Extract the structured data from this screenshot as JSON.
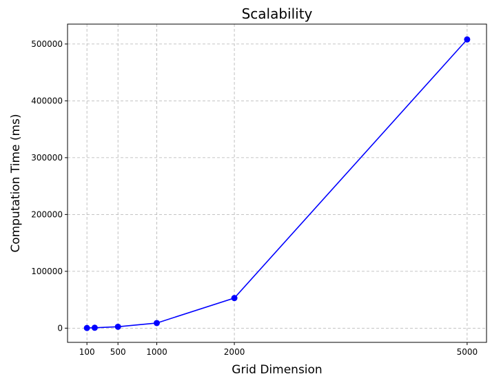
{
  "chart_data": {
    "type": "line",
    "title": "Scalability",
    "xlabel": "Grid Dimension",
    "ylabel": "Computation Time (ms)",
    "x_ticks": [
      100,
      500,
      1000,
      2000,
      5000
    ],
    "y_ticks": [
      0,
      100000,
      200000,
      300000,
      400000,
      500000
    ],
    "xlim": [
      -150,
      5250
    ],
    "ylim": [
      -25000,
      535000
    ],
    "grid": true,
    "grid_style": "dashed",
    "series": [
      {
        "color": "#0000ff",
        "marker": "circle",
        "x": [
          100,
          200,
          500,
          1000,
          2000,
          5000
        ],
        "y": [
          300,
          700,
          2500,
          9000,
          53000,
          508000
        ]
      }
    ]
  }
}
